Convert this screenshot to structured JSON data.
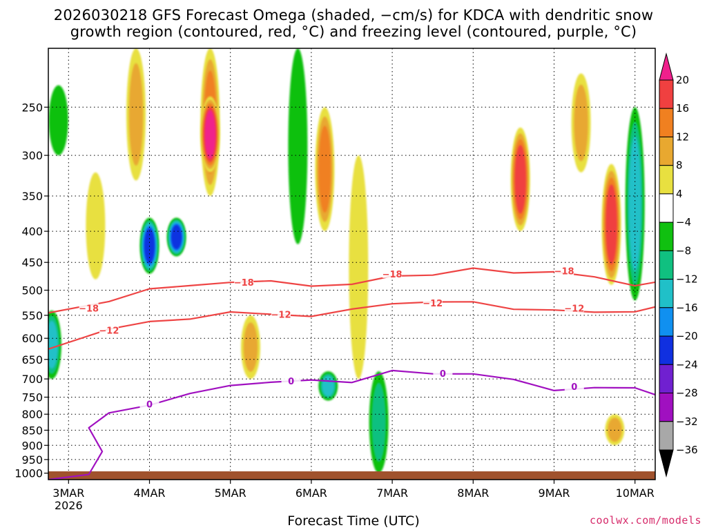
{
  "title": {
    "line1": "2026030218 GFS Forecast Omega (shaded, −cm/s) for KDCA with dendritic snow",
    "line2": "growth region (contoured, red, °C) and freezing level (contoured, purple, °C)"
  },
  "footer": {
    "xlabel": "Forecast Time (UTC)",
    "credit": "coolwx.com/models"
  },
  "chart_data": {
    "type": "heatmap",
    "y_axis": {
      "quantity": "pressure (hPa)",
      "scale": "log",
      "inverted": true,
      "range": [
        200,
        1025
      ],
      "ticks": [
        250,
        300,
        350,
        400,
        450,
        500,
        550,
        600,
        650,
        700,
        750,
        800,
        850,
        900,
        950,
        1000
      ]
    },
    "x_axis": {
      "range_days": [
        "2026-03-02T18Z",
        "2026-03-10T06Z"
      ],
      "ticks": [
        {
          "date": "2026-03-03T00Z",
          "label": "3MAR",
          "sublabel": "2026"
        },
        {
          "date": "2026-03-04T00Z",
          "label": "4MAR",
          "sublabel": ""
        },
        {
          "date": "2026-03-05T00Z",
          "label": "5MAR",
          "sublabel": ""
        },
        {
          "date": "2026-03-06T00Z",
          "label": "6MAR",
          "sublabel": ""
        },
        {
          "date": "2026-03-07T00Z",
          "label": "7MAR",
          "sublabel": ""
        },
        {
          "date": "2026-03-08T00Z",
          "label": "8MAR",
          "sublabel": ""
        },
        {
          "date": "2026-03-09T00Z",
          "label": "9MAR",
          "sublabel": ""
        },
        {
          "date": "2026-03-10T00Z",
          "label": "10MAR",
          "sublabel": ""
        }
      ]
    },
    "grid": true,
    "colorbar": {
      "placement": "right",
      "labels": [
        "20",
        "16",
        "12",
        "8",
        "4",
        "−4",
        "−8",
        "−12",
        "−16",
        "−20",
        "−24",
        "−28",
        "−32",
        "−36"
      ],
      "bins": [
        {
          "range": "above 20",
          "color": "#f0208c"
        },
        {
          "range": "16 to 20",
          "color": "#f04040"
        },
        {
          "range": "12 to 16",
          "color": "#f08020"
        },
        {
          "range": "8 to 12",
          "color": "#e8a830"
        },
        {
          "range": "4 to 8",
          "color": "#e8e040"
        },
        {
          "range": "-4 to 4",
          "color": "#ffffff"
        },
        {
          "range": "-8 to -4",
          "color": "#10c010"
        },
        {
          "range": "-12 to -8",
          "color": "#10c080"
        },
        {
          "range": "-16 to -12",
          "color": "#20c0c8"
        },
        {
          "range": "-20 to -16",
          "color": "#1090f0"
        },
        {
          "range": "-24 to -20",
          "color": "#1030e0"
        },
        {
          "range": "-28 to -24",
          "color": "#7020d0"
        },
        {
          "range": "-32 to -28",
          "color": "#a010c0"
        },
        {
          "range": "-36 to -32",
          "color": "#a8a8a8"
        },
        {
          "range": "below -36",
          "color": "#000000"
        }
      ]
    },
    "shading_blobs": [
      {
        "t": "2026-03-02T19Z",
        "p_top": 540,
        "p_bot": 700,
        "value": -14
      },
      {
        "t": "2026-03-02T21Z",
        "p_top": 230,
        "p_bot": 300,
        "value": -6
      },
      {
        "t": "2026-03-03T08Z",
        "p_top": 320,
        "p_bot": 480,
        "value": 5
      },
      {
        "t": "2026-03-03T20Z",
        "p_top": 200,
        "p_bot": 330,
        "value": 10
      },
      {
        "t": "2026-03-04T00Z",
        "p_top": 380,
        "p_bot": 470,
        "value": -22
      },
      {
        "t": "2026-03-04T08Z",
        "p_top": 380,
        "p_bot": 440,
        "value": -24
      },
      {
        "t": "2026-03-04T18Z",
        "p_top": 200,
        "p_bot": 350,
        "value": 14
      },
      {
        "t": "2026-03-04T18Z",
        "p_top": 240,
        "p_bot": 320,
        "value": 22
      },
      {
        "t": "2026-03-05T06Z",
        "p_top": 550,
        "p_bot": 700,
        "value": 10
      },
      {
        "t": "2026-03-05T20Z",
        "p_top": 200,
        "p_bot": 420,
        "value": -6
      },
      {
        "t": "2026-03-06T04Z",
        "p_top": 250,
        "p_bot": 400,
        "value": 14
      },
      {
        "t": "2026-03-06T05Z",
        "p_top": 680,
        "p_bot": 760,
        "value": -16
      },
      {
        "t": "2026-03-06T14Z",
        "p_top": 300,
        "p_bot": 700,
        "value": 8
      },
      {
        "t": "2026-03-06T20Z",
        "p_top": 680,
        "p_bot": 1000,
        "value": -10
      },
      {
        "t": "2026-03-08T14Z",
        "p_top": 270,
        "p_bot": 400,
        "value": 20
      },
      {
        "t": "2026-03-09T08Z",
        "p_top": 220,
        "p_bot": 320,
        "value": 12
      },
      {
        "t": "2026-03-09T17Z",
        "p_top": 310,
        "p_bot": 490,
        "value": 20
      },
      {
        "t": "2026-03-10T00Z",
        "p_top": 250,
        "p_bot": 520,
        "value": -14
      },
      {
        "t": "2026-03-09T18Z",
        "p_top": 800,
        "p_bot": 900,
        "value": 12
      }
    ],
    "contours": [
      {
        "name": "−18",
        "color": "#ee4444",
        "points": [
          [
            "2026-03-02T18Z",
            545
          ],
          [
            "2026-03-03T12Z",
            520
          ],
          [
            "2026-03-04T00Z",
            500
          ],
          [
            "2026-03-04T12Z",
            490
          ],
          [
            "2026-03-05T00Z",
            485
          ],
          [
            "2026-03-05T12Z",
            485
          ],
          [
            "2026-03-06T00Z",
            490
          ],
          [
            "2026-03-06T12Z",
            490
          ],
          [
            "2026-03-07T00Z",
            475
          ],
          [
            "2026-03-07T12Z",
            470
          ],
          [
            "2026-03-08T00Z",
            462
          ],
          [
            "2026-03-08T12Z",
            468
          ],
          [
            "2026-03-09T00Z",
            465
          ],
          [
            "2026-03-09T12Z",
            478
          ],
          [
            "2026-03-10T00Z",
            490
          ],
          [
            "2026-03-10T06Z",
            485
          ]
        ],
        "labels": [
          [
            "2026-03-03T06Z",
            535
          ],
          [
            "2026-03-05T04Z",
            485
          ],
          [
            "2026-03-07T00Z",
            470
          ],
          [
            "2026-03-09T03Z",
            465
          ]
        ]
      },
      {
        "name": "−12",
        "color": "#ee4444",
        "points": [
          [
            "2026-03-02T18Z",
            625
          ],
          [
            "2026-03-03T12Z",
            580
          ],
          [
            "2026-03-04T00Z",
            565
          ],
          [
            "2026-03-04T12Z",
            555
          ],
          [
            "2026-03-05T00Z",
            545
          ],
          [
            "2026-03-05T12Z",
            548
          ],
          [
            "2026-03-06T00Z",
            550
          ],
          [
            "2026-03-06T12Z",
            540
          ],
          [
            "2026-03-07T00Z",
            525
          ],
          [
            "2026-03-07T12Z",
            522
          ],
          [
            "2026-03-08T00Z",
            525
          ],
          [
            "2026-03-08T12Z",
            535
          ],
          [
            "2026-03-09T00Z",
            540
          ],
          [
            "2026-03-09T12Z",
            545
          ],
          [
            "2026-03-10T00Z",
            540
          ],
          [
            "2026-03-10T06Z",
            535
          ]
        ],
        "labels": [
          [
            "2026-03-03T12Z",
            582
          ],
          [
            "2026-03-05T15Z",
            548
          ],
          [
            "2026-03-07T12Z",
            525
          ],
          [
            "2026-03-09T06Z",
            535
          ]
        ]
      },
      {
        "name": "0",
        "color": "#a010c0",
        "points": [
          [
            "2026-03-02T18Z",
            1025
          ],
          [
            "2026-03-03T06Z",
            1010
          ],
          [
            "2026-03-03T10Z",
            920
          ],
          [
            "2026-03-03T06Z",
            840
          ],
          [
            "2026-03-03T12Z",
            800
          ],
          [
            "2026-03-04T00Z",
            770
          ],
          [
            "2026-03-04T12Z",
            740
          ],
          [
            "2026-03-05T00Z",
            720
          ],
          [
            "2026-03-05T12Z",
            705
          ],
          [
            "2026-03-06T00Z",
            705
          ],
          [
            "2026-03-06T12Z",
            710
          ],
          [
            "2026-03-07T00Z",
            675
          ],
          [
            "2026-03-07T12Z",
            690
          ],
          [
            "2026-03-08T00Z",
            685
          ],
          [
            "2026-03-08T12Z",
            700
          ],
          [
            "2026-03-09T00Z",
            735
          ],
          [
            "2026-03-09T12Z",
            720
          ],
          [
            "2026-03-10T00Z",
            725
          ],
          [
            "2026-03-10T06Z",
            745
          ]
        ],
        "labels": [
          [
            "2026-03-04T00Z",
            770
          ],
          [
            "2026-03-05T18Z",
            705
          ],
          [
            "2026-03-07T15Z",
            685
          ],
          [
            "2026-03-09T06Z",
            720
          ]
        ]
      }
    ]
  }
}
